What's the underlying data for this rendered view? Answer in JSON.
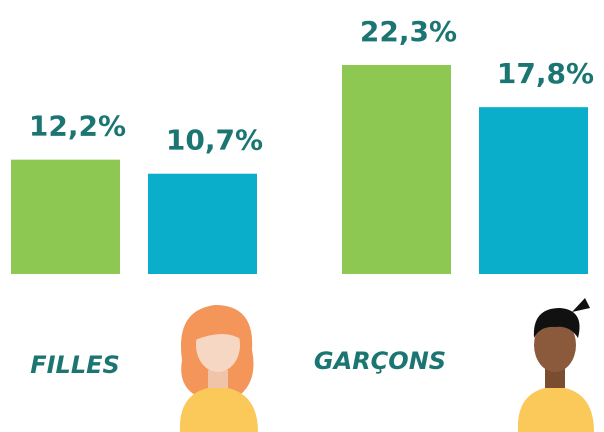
{
  "chart_data": {
    "type": "bar",
    "categories": [
      "FILLES",
      "GARÇONS"
    ],
    "series": [
      {
        "color": "#8dc853",
        "values": [
          12.2,
          22.3
        ],
        "value_labels": [
          "12,2%",
          "22,3%"
        ]
      },
      {
        "color": "#0aaecb",
        "values": [
          10.7,
          17.8
        ],
        "value_labels": [
          "10,7%",
          "17,8%"
        ]
      }
    ]
  }
}
